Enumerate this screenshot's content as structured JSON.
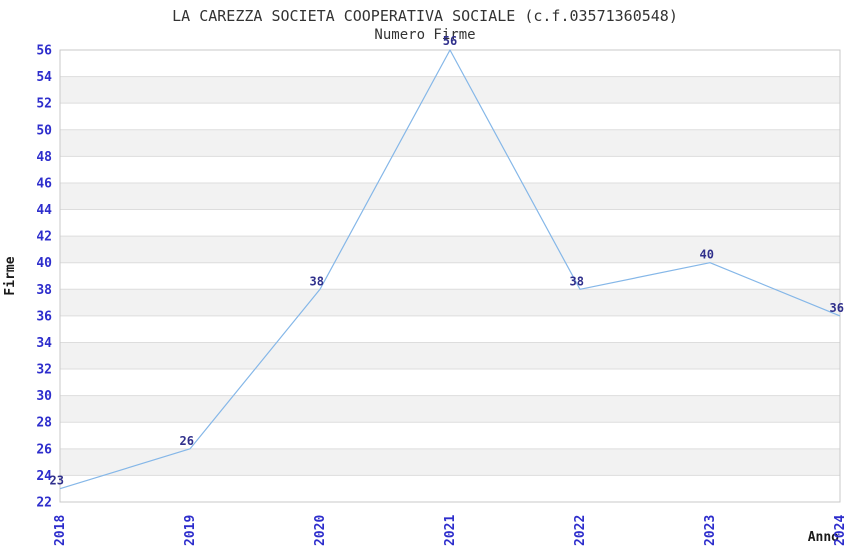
{
  "chart_data": {
    "type": "line",
    "title": "LA CAREZZA SOCIETA COOPERATIVA SOCIALE (c.f.03571360548)",
    "subtitle": "Numero Firme",
    "xlabel": "Anno",
    "ylabel": "Firme",
    "categories": [
      "2018",
      "2019",
      "2020",
      "2021",
      "2022",
      "2023",
      "2024"
    ],
    "series": [
      {
        "name": "Numero Firme",
        "values": [
          23,
          26,
          38,
          56,
          38,
          40,
          36
        ]
      }
    ],
    "ylim": [
      22,
      56
    ],
    "ytick_step": 2,
    "yticks": [
      22,
      24,
      26,
      28,
      30,
      32,
      34,
      36,
      38,
      40,
      42,
      44,
      46,
      48,
      50,
      52,
      54,
      56
    ],
    "grid": true,
    "legend_position": "none",
    "colors": {
      "line": "#85b7e8",
      "point_label": "#30308c",
      "tick_label": "#2d2dcc",
      "axis_label": "#1a1a1a",
      "title": "#333333",
      "band": "#f2f2f2",
      "grid_line": "#dddddd",
      "plot_border": "#c9c9c9",
      "background": "#ffffff"
    }
  }
}
